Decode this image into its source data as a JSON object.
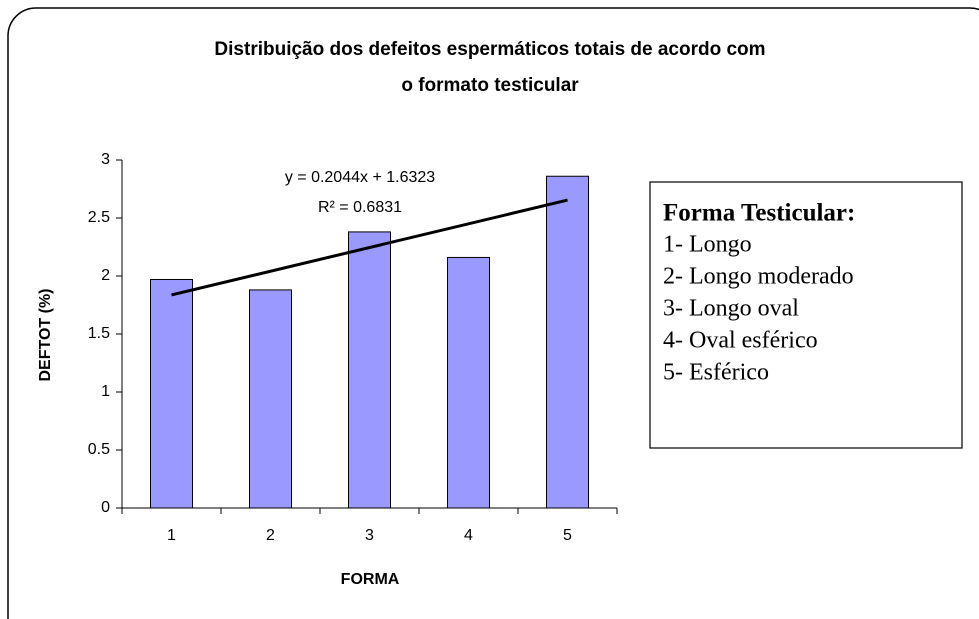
{
  "chart_data": {
    "type": "bar",
    "title": [
      "Distribuição dos defeitos espermáticos totais de acordo com",
      "o formato testicular"
    ],
    "x_label": "FORMA",
    "y_label": "DEFTOT (%)",
    "categories": [
      "1",
      "2",
      "3",
      "4",
      "5"
    ],
    "values": [
      1.97,
      1.88,
      2.38,
      2.16,
      2.86
    ],
    "color": "#9999ff",
    "ylim": [
      0,
      3
    ],
    "yticks": [
      0,
      0.5,
      1,
      1.5,
      2,
      2.5,
      3
    ],
    "trendline": {
      "slope": 0.2044,
      "intercept": 1.6323,
      "equation": "y = 0.2044x + 1.6323",
      "r2_label": "R² = 0.6831"
    },
    "text_box": {
      "title": "Forma Testicular:",
      "lines": [
        "1- Longo",
        "2- Longo moderado",
        "3- Longo oval",
        "4- Oval esférico",
        "5- Esférico"
      ]
    }
  }
}
